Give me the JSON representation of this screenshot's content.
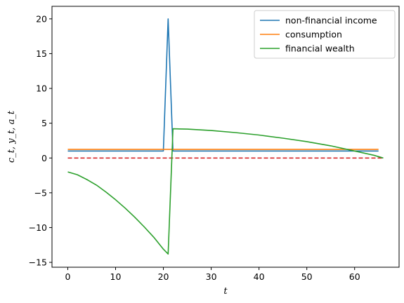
{
  "chart_data": {
    "type": "line",
    "title": "",
    "xlabel": "t",
    "ylabel": "c_t, y_t, a_t",
    "xlim": [
      -3.3,
      69.3
    ],
    "ylim": [
      -15.7,
      21.8
    ],
    "xticks": [
      0,
      10,
      20,
      30,
      40,
      50,
      60
    ],
    "yticks": [
      -15,
      -10,
      -5,
      0,
      5,
      10,
      15,
      20
    ],
    "grid": false,
    "legend_position": "top-right",
    "series": [
      {
        "name": "non-financial income",
        "color": "#1f77b4",
        "style": "solid",
        "x": [
          0,
          20,
          21,
          22,
          65
        ],
        "y": [
          1,
          1,
          20,
          1,
          1
        ]
      },
      {
        "name": "consumption",
        "color": "#ff7f0e",
        "style": "solid",
        "x": [
          0,
          65
        ],
        "y": [
          1.25,
          1.25
        ]
      },
      {
        "name": "financial wealth",
        "color": "#2ca02c",
        "style": "solid",
        "x": [
          0,
          2,
          4,
          6,
          8,
          10,
          12,
          14,
          16,
          18,
          20,
          21,
          22,
          25,
          30,
          35,
          40,
          45,
          50,
          55,
          60,
          62,
          64,
          66
        ],
        "y": [
          -2.0,
          -2.4,
          -3.1,
          -3.9,
          -4.9,
          -6.0,
          -7.2,
          -8.5,
          -9.9,
          -11.4,
          -13.1,
          -13.8,
          4.2,
          4.15,
          3.95,
          3.65,
          3.3,
          2.85,
          2.35,
          1.75,
          1.0,
          0.7,
          0.4,
          0.0
        ]
      },
      {
        "name": "",
        "color": "#d62728",
        "style": "dashed",
        "x": [
          0,
          66
        ],
        "y": [
          0,
          0
        ]
      }
    ]
  }
}
